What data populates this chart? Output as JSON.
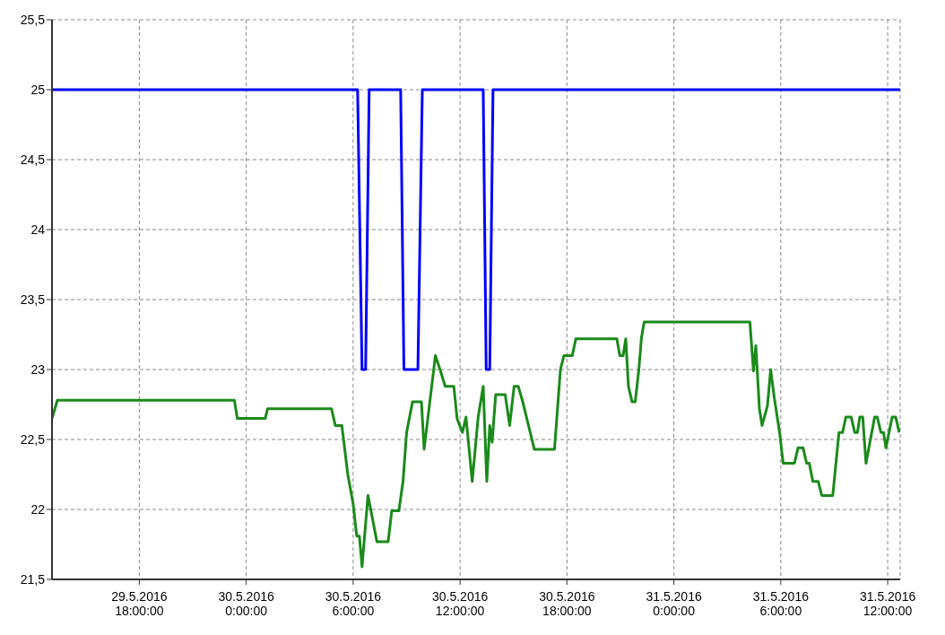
{
  "chart_data": {
    "type": "line",
    "xlim": [
      "2016-05-29T13:06",
      "2016-05-31T12:42"
    ],
    "ylim": [
      21.5,
      25.5
    ],
    "xticks": [
      {
        "value": "2016-05-29T18:00",
        "label": "29.5.2016 18:00:00"
      },
      {
        "value": "2016-05-30T00:00",
        "label": "30.5.2016 0:00:00"
      },
      {
        "value": "2016-05-30T06:00",
        "label": "30.5.2016 6:00:00"
      },
      {
        "value": "2016-05-30T12:00",
        "label": "30.5.2016 12:00:00"
      },
      {
        "value": "2016-05-30T18:00",
        "label": "30.5.2016 18:00:00"
      },
      {
        "value": "2016-05-31T00:00",
        "label": "31.5.2016 0:00:00"
      },
      {
        "value": "2016-05-31T06:00",
        "label": "31.5.2016 6:00:00"
      },
      {
        "value": "2016-05-31T12:00",
        "label": "31.5.2016 12:00:00"
      }
    ],
    "yticks": [
      {
        "value": 21.5,
        "label": "21,5"
      },
      22,
      {
        "value": 22.5,
        "label": "22,5"
      },
      23,
      {
        "value": 23.5,
        "label": "23,5"
      },
      24,
      {
        "value": 24.5,
        "label": "24,5"
      },
      25,
      {
        "value": 25.5,
        "label": "25,5"
      }
    ],
    "grid": true,
    "marker": "none",
    "line_style": "solid",
    "series": [
      {
        "color": "#0000ff",
        "x": [
          "2016-05-29T13:06",
          "2016-05-30T06:15",
          "2016-05-30T06:30",
          "2016-05-30T06:42",
          "2016-05-30T06:54",
          "2016-05-30T08:40",
          "2016-05-30T08:51",
          "2016-05-30T09:38",
          "2016-05-30T09:53",
          "2016-05-30T13:18",
          "2016-05-30T13:28",
          "2016-05-30T13:40",
          "2016-05-30T13:51",
          "2016-05-31T12:42"
        ],
        "values": [
          25,
          25,
          23,
          23,
          25,
          25,
          23,
          23,
          25,
          25,
          23,
          23,
          25,
          25
        ]
      },
      {
        "color": "#1a8a1a",
        "x": [
          "2016-05-29T13:06",
          "2016-05-29T13:24",
          "2016-05-29T23:20",
          "2016-05-29T23:30",
          "2016-05-30T01:04",
          "2016-05-30T01:12",
          "2016-05-30T04:47",
          "2016-05-30T05:00",
          "2016-05-30T05:22",
          "2016-05-30T05:42",
          "2016-05-30T06:00",
          "2016-05-30T06:12",
          "2016-05-30T06:21",
          "2016-05-30T06:30",
          "2016-05-30T06:50",
          "2016-05-30T07:20",
          "2016-05-30T07:58",
          "2016-05-30T08:10",
          "2016-05-30T08:34",
          "2016-05-30T08:48",
          "2016-05-30T09:00",
          "2016-05-30T09:20",
          "2016-05-30T09:50",
          "2016-05-30T09:59",
          "2016-05-30T10:37",
          "2016-05-30T10:54",
          "2016-05-30T11:10",
          "2016-05-30T11:39",
          "2016-05-30T11:50",
          "2016-05-30T12:08",
          "2016-05-30T12:20",
          "2016-05-30T12:41",
          "2016-05-30T13:01",
          "2016-05-30T13:18",
          "2016-05-30T13:30",
          "2016-05-30T13:40",
          "2016-05-30T13:48",
          "2016-05-30T14:00",
          "2016-05-30T14:32",
          "2016-05-30T14:47",
          "2016-05-30T15:02",
          "2016-05-30T15:16",
          "2016-05-30T15:31",
          "2016-05-30T16:10",
          "2016-05-30T17:18",
          "2016-05-30T17:38",
          "2016-05-30T17:50",
          "2016-05-30T18:18",
          "2016-05-30T18:30",
          "2016-05-30T20:48",
          "2016-05-30T20:58",
          "2016-05-30T21:09",
          "2016-05-30T21:18",
          "2016-05-30T21:27",
          "2016-05-30T21:39",
          "2016-05-30T21:50",
          "2016-05-30T22:02",
          "2016-05-30T22:11",
          "2016-05-30T22:20",
          "2016-05-31T04:16",
          "2016-05-31T04:28",
          "2016-05-31T04:36",
          "2016-05-31T04:48",
          "2016-05-31T04:57",
          "2016-05-31T05:15",
          "2016-05-31T05:26",
          "2016-05-31T05:38",
          "2016-05-31T05:56",
          "2016-05-31T06:08",
          "2016-05-31T06:46",
          "2016-05-31T06:58",
          "2016-05-31T07:15",
          "2016-05-31T07:27",
          "2016-05-31T07:36",
          "2016-05-31T07:48",
          "2016-05-31T08:06",
          "2016-05-31T08:18",
          "2016-05-31T08:55",
          "2016-05-31T09:16",
          "2016-05-31T09:28",
          "2016-05-31T09:39",
          "2016-05-31T09:57",
          "2016-05-31T10:09",
          "2016-05-31T10:18",
          "2016-05-31T10:26",
          "2016-05-31T10:36",
          "2016-05-31T10:47",
          "2016-05-31T11:16",
          "2016-05-31T11:25",
          "2016-05-31T11:37",
          "2016-05-31T11:46",
          "2016-05-31T11:54",
          "2016-05-31T12:15",
          "2016-05-31T12:27",
          "2016-05-31T12:39"
        ],
        "values": [
          22.65,
          22.78,
          22.78,
          22.65,
          22.65,
          22.72,
          22.72,
          22.6,
          22.6,
          22.25,
          22.04,
          21.81,
          21.81,
          21.59,
          22.1,
          21.77,
          21.77,
          21.99,
          21.99,
          22.2,
          22.55,
          22.77,
          22.77,
          22.43,
          23.1,
          22.99,
          22.88,
          22.88,
          22.65,
          22.55,
          22.66,
          22.2,
          22.66,
          22.88,
          22.2,
          22.6,
          22.48,
          22.82,
          22.82,
          22.6,
          22.88,
          22.88,
          22.77,
          22.43,
          22.43,
          23.0,
          23.1,
          23.1,
          23.22,
          23.22,
          23.1,
          23.1,
          23.22,
          22.88,
          22.77,
          22.77,
          23.0,
          23.23,
          23.34,
          23.34,
          22.99,
          23.17,
          22.72,
          22.6,
          22.74,
          23.0,
          22.8,
          22.55,
          22.33,
          22.33,
          22.44,
          22.44,
          22.33,
          22.33,
          22.2,
          22.2,
          22.1,
          22.1,
          22.55,
          22.55,
          22.66,
          22.66,
          22.55,
          22.55,
          22.66,
          22.66,
          22.33,
          22.66,
          22.66,
          22.55,
          22.55,
          22.44,
          22.66,
          22.66,
          22.55
        ]
      }
    ]
  }
}
